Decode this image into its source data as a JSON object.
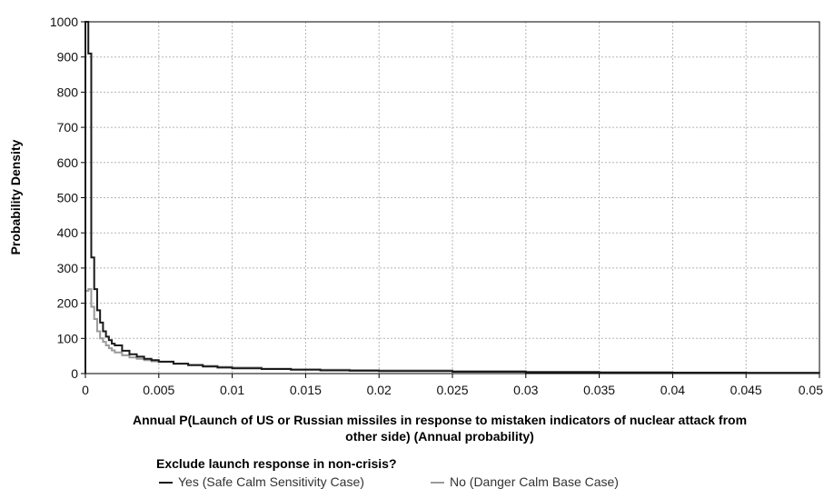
{
  "chart_data": {
    "type": "line",
    "title": "",
    "xlabel_lines": [
      "Annual P(Launch of US or Russian missiles in response to mistaken indicators of nuclear attack from",
      "other side) (Annual probability)"
    ],
    "ylabel": "Probability Density",
    "xlim": [
      0,
      0.05
    ],
    "ylim": [
      0,
      1000
    ],
    "x_ticks": [
      "0",
      "0.005",
      "0.01",
      "0.015",
      "0.02",
      "0.025",
      "0.03",
      "0.035",
      "0.04",
      "0.045",
      "0.05"
    ],
    "y_ticks": [
      "0",
      "100",
      "200",
      "300",
      "400",
      "500",
      "600",
      "700",
      "800",
      "900",
      "1000"
    ],
    "grid": true,
    "legend": {
      "title": "Exclude launch response in non-crisis?",
      "placement": "bottom-left"
    },
    "series": [
      {
        "name": "Yes (Safe Calm Sensitivity Case)",
        "color": "#1a1a1a",
        "step": true,
        "x": [
          0,
          0.0002,
          0.0004,
          0.0006,
          0.0008,
          0.001,
          0.0012,
          0.0014,
          0.0016,
          0.0018,
          0.002,
          0.0025,
          0.003,
          0.0035,
          0.004,
          0.0045,
          0.005,
          0.006,
          0.007,
          0.008,
          0.009,
          0.01,
          0.012,
          0.014,
          0.016,
          0.018,
          0.02,
          0.025,
          0.03,
          0.035,
          0.04,
          0.045,
          0.05
        ],
        "y": [
          1000,
          910,
          330,
          240,
          180,
          145,
          120,
          105,
          95,
          85,
          80,
          65,
          55,
          48,
          42,
          38,
          34,
          28,
          24,
          20,
          17,
          15,
          13,
          11,
          9,
          8,
          7,
          5,
          4,
          3,
          2.5,
          2,
          1.5
        ]
      },
      {
        "name": "No (Danger Calm Base Case)",
        "color": "#9a9a9a",
        "step": true,
        "x": [
          0,
          0.0002,
          0.0004,
          0.0006,
          0.0008,
          0.001,
          0.0012,
          0.0014,
          0.0016,
          0.0018,
          0.002,
          0.0025,
          0.003,
          0.0035,
          0.004,
          0.0045,
          0.005,
          0.006,
          0.007,
          0.008,
          0.009,
          0.01,
          0.012,
          0.014,
          0.016,
          0.018,
          0.02,
          0.025,
          0.03,
          0.035,
          0.04,
          0.045,
          0.05
        ],
        "y": [
          235,
          240,
          190,
          155,
          120,
          100,
          90,
          80,
          72,
          66,
          60,
          52,
          46,
          42,
          38,
          35,
          33,
          28,
          25,
          22,
          19,
          17,
          14,
          12,
          11,
          10,
          9,
          7,
          5,
          4,
          3,
          2.5,
          2
        ]
      }
    ]
  }
}
